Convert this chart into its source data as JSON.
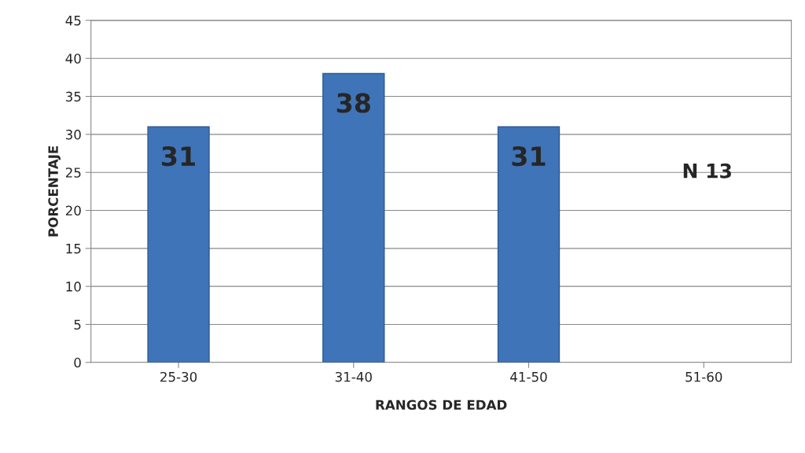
{
  "chart_data": {
    "type": "bar",
    "xlabel": "RANGOS DE EDAD",
    "ylabel": "PORCENTAJE",
    "categories": [
      "25-30",
      "31-40",
      "41-50",
      "51-60"
    ],
    "values": [
      31,
      38,
      31,
      null
    ],
    "value_labels": [
      "31",
      "38",
      "31",
      null
    ],
    "color": "#3f74b8",
    "ylim": [
      0,
      45
    ],
    "yticks": [
      0,
      5,
      10,
      15,
      20,
      25,
      30,
      35,
      40,
      45
    ],
    "grid": "y",
    "legend": false,
    "annotations": [
      "N 13"
    ]
  }
}
